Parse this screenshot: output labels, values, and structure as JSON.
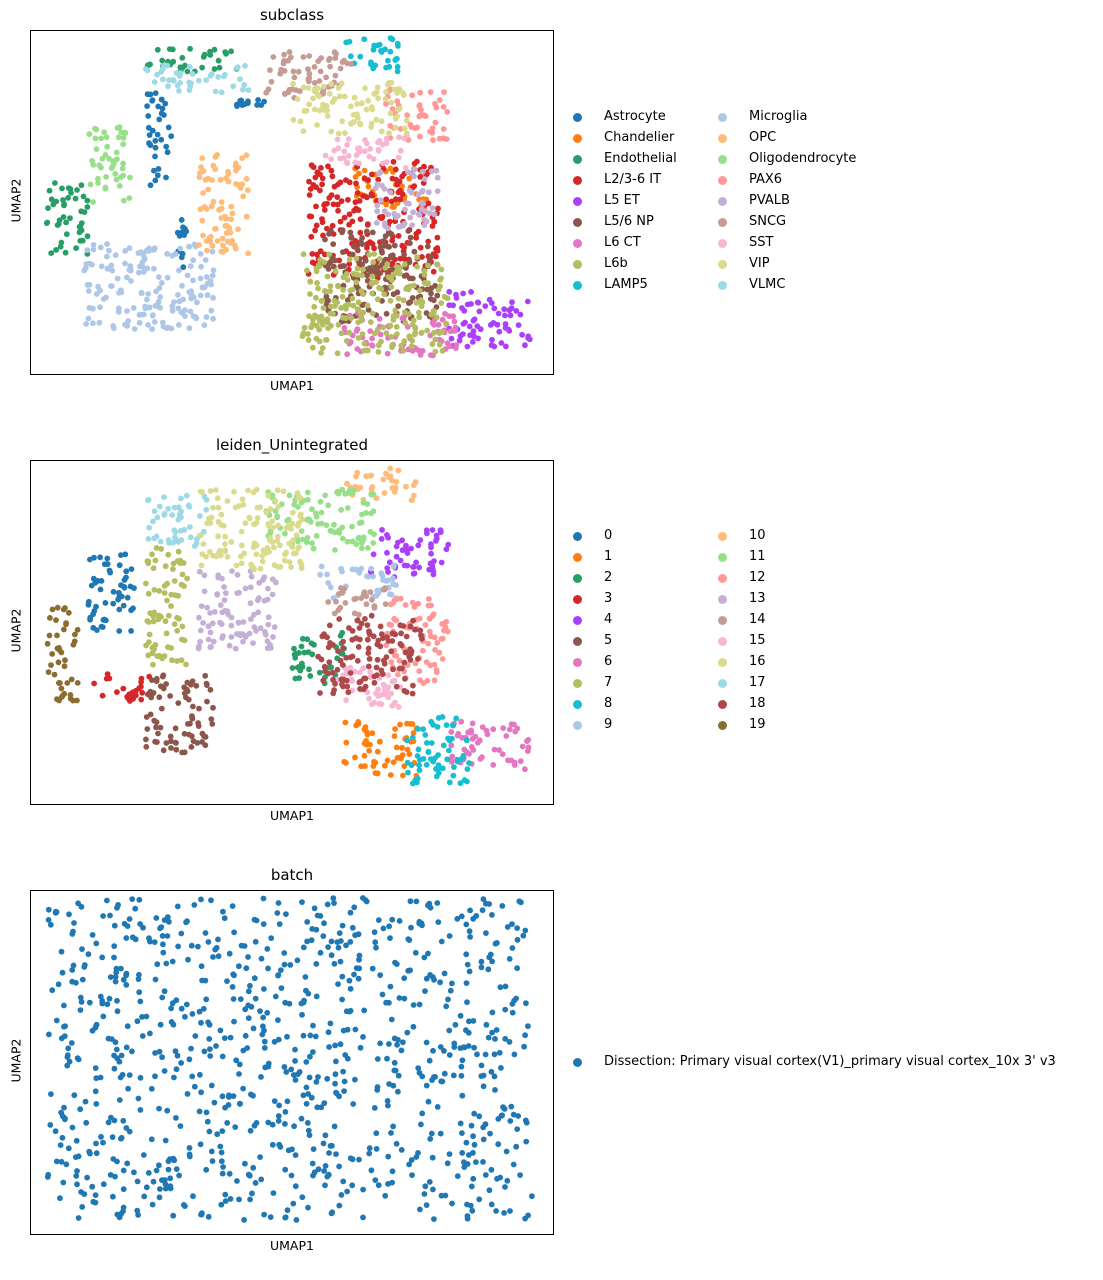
{
  "panels": [
    {
      "id": "subclass",
      "title": "subclass",
      "xlabel": "UMAP1",
      "ylabel": "UMAP2",
      "legend_columns": 2,
      "legend": [
        {
          "label": "Astrocyte",
          "color": "#1f77b4"
        },
        {
          "label": "Chandelier",
          "color": "#ff7f0e"
        },
        {
          "label": "Endothelial",
          "color": "#279e68"
        },
        {
          "label": "L2/3-6 IT",
          "color": "#d62728"
        },
        {
          "label": "L5 ET",
          "color": "#aa40fc"
        },
        {
          "label": "L5/6 NP",
          "color": "#8c564b"
        },
        {
          "label": "L6 CT",
          "color": "#e377c2"
        },
        {
          "label": "L6b",
          "color": "#b5bd61"
        },
        {
          "label": "LAMP5",
          "color": "#17becf"
        },
        {
          "label": "Microglia",
          "color": "#aec7e8"
        },
        {
          "label": "OPC",
          "color": "#ffbb78"
        },
        {
          "label": "Oligodendrocyte",
          "color": "#98df8a"
        },
        {
          "label": "PAX6",
          "color": "#ff9896"
        },
        {
          "label": "PVALB",
          "color": "#c5b0d5"
        },
        {
          "label": "SNCG",
          "color": "#c49c94"
        },
        {
          "label": "SST",
          "color": "#f7b6d2"
        },
        {
          "label": "VIP",
          "color": "#dbdb8d"
        },
        {
          "label": "VLMC",
          "color": "#9edae5"
        }
      ]
    },
    {
      "id": "leiden",
      "title": "leiden_Unintegrated",
      "xlabel": "UMAP1",
      "ylabel": "UMAP2",
      "legend_columns": 2,
      "legend": [
        {
          "label": "0",
          "color": "#1f77b4"
        },
        {
          "label": "1",
          "color": "#ff7f0e"
        },
        {
          "label": "2",
          "color": "#279e68"
        },
        {
          "label": "3",
          "color": "#d62728"
        },
        {
          "label": "4",
          "color": "#aa40fc"
        },
        {
          "label": "5",
          "color": "#8c564b"
        },
        {
          "label": "6",
          "color": "#e377c2"
        },
        {
          "label": "7",
          "color": "#b5bd61"
        },
        {
          "label": "8",
          "color": "#17becf"
        },
        {
          "label": "9",
          "color": "#aec7e8"
        },
        {
          "label": "10",
          "color": "#ffbb78"
        },
        {
          "label": "11",
          "color": "#98df8a"
        },
        {
          "label": "12",
          "color": "#ff9896"
        },
        {
          "label": "13",
          "color": "#c5b0d5"
        },
        {
          "label": "14",
          "color": "#c49c94"
        },
        {
          "label": "15",
          "color": "#f7b6d2"
        },
        {
          "label": "16",
          "color": "#dbdb8d"
        },
        {
          "label": "17",
          "color": "#9edae5"
        },
        {
          "label": "18",
          "color": "#ad494a"
        },
        {
          "label": "19",
          "color": "#8c6d31"
        }
      ]
    },
    {
      "id": "batch",
      "title": "batch",
      "xlabel": "UMAP1",
      "ylabel": "UMAP2",
      "legend_columns": 1,
      "legend": [
        {
          "label": "Dissection: Primary visual cortex(V1)_primary visual cortex_10x 3' v3",
          "color": "#1f77b4"
        }
      ]
    }
  ],
  "chart_data": [
    {
      "type": "scatter",
      "title": "subclass",
      "xlabel": "UMAP1",
      "ylabel": "UMAP2",
      "ticks": "none",
      "legend_placement": "right",
      "series": [
        {
          "name": "Astrocyte",
          "color": "#1f77b4",
          "regions": [
            {
              "x": [
                0.22,
                0.27
              ],
              "y": [
                0.55,
                0.82
              ]
            },
            {
              "x": [
                0.38,
                0.45
              ],
              "y": [
                0.78,
                0.8
              ]
            },
            {
              "x": [
                0.28,
                0.3
              ],
              "y": [
                0.3,
                0.45
              ]
            }
          ]
        },
        {
          "name": "Chandelier",
          "color": "#ff7f0e",
          "regions": [
            {
              "x": [
                0.62,
                0.76
              ],
              "y": [
                0.48,
                0.6
              ]
            }
          ]
        },
        {
          "name": "Endothelial",
          "color": "#279e68",
          "regions": [
            {
              "x": [
                0.03,
                0.11
              ],
              "y": [
                0.35,
                0.57
              ]
            },
            {
              "x": [
                0.22,
                0.4
              ],
              "y": [
                0.88,
                0.95
              ]
            }
          ]
        },
        {
          "name": "L2/3-6 IT",
          "color": "#d62728",
          "regions": [
            {
              "x": [
                0.53,
                0.78
              ],
              "y": [
                0.28,
                0.62
              ]
            }
          ]
        },
        {
          "name": "L5 ET",
          "color": "#aa40fc",
          "regions": [
            {
              "x": [
                0.8,
                0.96
              ],
              "y": [
                0.08,
                0.24
              ]
            }
          ]
        },
        {
          "name": "L5/6 NP",
          "color": "#8c564b",
          "regions": [
            {
              "x": [
                0.56,
                0.78
              ],
              "y": [
                0.15,
                0.42
              ]
            }
          ]
        },
        {
          "name": "L6 CT",
          "color": "#e377c2",
          "regions": [
            {
              "x": [
                0.6,
                0.82
              ],
              "y": [
                0.05,
                0.18
              ]
            }
          ]
        },
        {
          "name": "L6b",
          "color": "#b5bd61",
          "regions": [
            {
              "x": [
                0.52,
                0.8
              ],
              "y": [
                0.06,
                0.35
              ]
            }
          ]
        },
        {
          "name": "LAMP5",
          "color": "#17becf",
          "regions": [
            {
              "x": [
                0.6,
                0.72
              ],
              "y": [
                0.88,
                0.98
              ]
            }
          ]
        },
        {
          "name": "Microglia",
          "color": "#aec7e8",
          "regions": [
            {
              "x": [
                0.1,
                0.35
              ],
              "y": [
                0.13,
                0.38
              ]
            }
          ]
        },
        {
          "name": "OPC",
          "color": "#ffbb78",
          "regions": [
            {
              "x": [
                0.32,
                0.42
              ],
              "y": [
                0.35,
                0.65
              ]
            }
          ]
        },
        {
          "name": "Oligodendrocyte",
          "color": "#98df8a",
          "regions": [
            {
              "x": [
                0.11,
                0.19
              ],
              "y": [
                0.5,
                0.73
              ]
            }
          ]
        },
        {
          "name": "PAX6",
          "color": "#ff9896",
          "regions": [
            {
              "x": [
                0.68,
                0.8
              ],
              "y": [
                0.68,
                0.83
              ]
            }
          ]
        },
        {
          "name": "PVALB",
          "color": "#c5b0d5",
          "regions": [
            {
              "x": [
                0.66,
                0.78
              ],
              "y": [
                0.42,
                0.6
              ]
            }
          ]
        },
        {
          "name": "SNCG",
          "color": "#c49c94",
          "regions": [
            {
              "x": [
                0.45,
                0.62
              ],
              "y": [
                0.8,
                0.94
              ]
            }
          ]
        },
        {
          "name": "SST",
          "color": "#f7b6d2",
          "regions": [
            {
              "x": [
                0.56,
                0.72
              ],
              "y": [
                0.6,
                0.7
              ]
            }
          ]
        },
        {
          "name": "VIP",
          "color": "#dbdb8d",
          "regions": [
            {
              "x": [
                0.5,
                0.72
              ],
              "y": [
                0.7,
                0.85
              ]
            }
          ]
        },
        {
          "name": "VLMC",
          "color": "#9edae5",
          "regions": [
            {
              "x": [
                0.22,
                0.42
              ],
              "y": [
                0.82,
                0.9
              ]
            }
          ]
        }
      ]
    },
    {
      "type": "scatter",
      "title": "leiden_Unintegrated",
      "xlabel": "UMAP1",
      "ylabel": "UMAP2",
      "ticks": "none",
      "legend_placement": "right",
      "series": [
        {
          "name": "0",
          "color": "#1f77b4",
          "regions": [
            {
              "x": [
                0.11,
                0.2
              ],
              "y": [
                0.5,
                0.73
              ]
            }
          ]
        },
        {
          "name": "1",
          "color": "#ff7f0e",
          "regions": [
            {
              "x": [
                0.6,
                0.74
              ],
              "y": [
                0.08,
                0.24
              ]
            }
          ]
        },
        {
          "name": "2",
          "color": "#279e68",
          "regions": [
            {
              "x": [
                0.5,
                0.6
              ],
              "y": [
                0.35,
                0.5
              ]
            }
          ]
        },
        {
          "name": "3",
          "color": "#d62728",
          "regions": [
            {
              "x": [
                0.12,
                0.23
              ],
              "y": [
                0.3,
                0.38
              ]
            }
          ]
        },
        {
          "name": "4",
          "color": "#aa40fc",
          "regions": [
            {
              "x": [
                0.65,
                0.8
              ],
              "y": [
                0.66,
                0.8
              ]
            }
          ]
        },
        {
          "name": "5",
          "color": "#8c564b",
          "regions": [
            {
              "x": [
                0.22,
                0.35
              ],
              "y": [
                0.15,
                0.38
              ]
            }
          ]
        },
        {
          "name": "6",
          "color": "#e377c2",
          "regions": [
            {
              "x": [
                0.8,
                0.96
              ],
              "y": [
                0.1,
                0.24
              ]
            }
          ]
        },
        {
          "name": "7",
          "color": "#b5bd61",
          "regions": [
            {
              "x": [
                0.22,
                0.3
              ],
              "y": [
                0.4,
                0.75
              ]
            }
          ]
        },
        {
          "name": "8",
          "color": "#17becf",
          "regions": [
            {
              "x": [
                0.72,
                0.84
              ],
              "y": [
                0.06,
                0.26
              ]
            }
          ]
        },
        {
          "name": "9",
          "color": "#aec7e8",
          "regions": [
            {
              "x": [
                0.55,
                0.7
              ],
              "y": [
                0.6,
                0.7
              ]
            }
          ]
        },
        {
          "name": "10",
          "color": "#ffbb78",
          "regions": [
            {
              "x": [
                0.6,
                0.74
              ],
              "y": [
                0.88,
                0.98
              ]
            }
          ]
        },
        {
          "name": "11",
          "color": "#98df8a",
          "regions": [
            {
              "x": [
                0.45,
                0.66
              ],
              "y": [
                0.74,
                0.92
              ]
            }
          ]
        },
        {
          "name": "12",
          "color": "#ff9896",
          "regions": [
            {
              "x": [
                0.68,
                0.8
              ],
              "y": [
                0.35,
                0.6
              ]
            }
          ]
        },
        {
          "name": "13",
          "color": "#c5b0d5",
          "regions": [
            {
              "x": [
                0.32,
                0.47
              ],
              "y": [
                0.45,
                0.68
              ]
            }
          ]
        },
        {
          "name": "14",
          "color": "#c49c94",
          "regions": [
            {
              "x": [
                0.55,
                0.68
              ],
              "y": [
                0.55,
                0.63
              ]
            }
          ]
        },
        {
          "name": "15",
          "color": "#f7b6d2",
          "regions": [
            {
              "x": [
                0.58,
                0.72
              ],
              "y": [
                0.28,
                0.4
              ]
            }
          ]
        },
        {
          "name": "16",
          "color": "#dbdb8d",
          "regions": [
            {
              "x": [
                0.32,
                0.52
              ],
              "y": [
                0.68,
                0.92
              ]
            }
          ]
        },
        {
          "name": "17",
          "color": "#9edae5",
          "regions": [
            {
              "x": [
                0.22,
                0.34
              ],
              "y": [
                0.75,
                0.9
              ]
            }
          ]
        },
        {
          "name": "18",
          "color": "#ad494a",
          "regions": [
            {
              "x": [
                0.55,
                0.75
              ],
              "y": [
                0.32,
                0.55
              ]
            }
          ]
        },
        {
          "name": "19",
          "color": "#8c6d31",
          "regions": [
            {
              "x": [
                0.03,
                0.09
              ],
              "y": [
                0.3,
                0.58
              ]
            }
          ]
        }
      ]
    },
    {
      "type": "scatter",
      "title": "batch",
      "xlabel": "UMAP1",
      "ylabel": "UMAP2",
      "ticks": "none",
      "legend_placement": "right",
      "series": [
        {
          "name": "Dissection: Primary visual cortex(V1)_primary visual cortex_10x 3' v3",
          "color": "#1f77b4",
          "regions": [
            {
              "x": [
                0.03,
                0.96
              ],
              "y": [
                0.04,
                0.98
              ]
            }
          ]
        }
      ]
    }
  ]
}
